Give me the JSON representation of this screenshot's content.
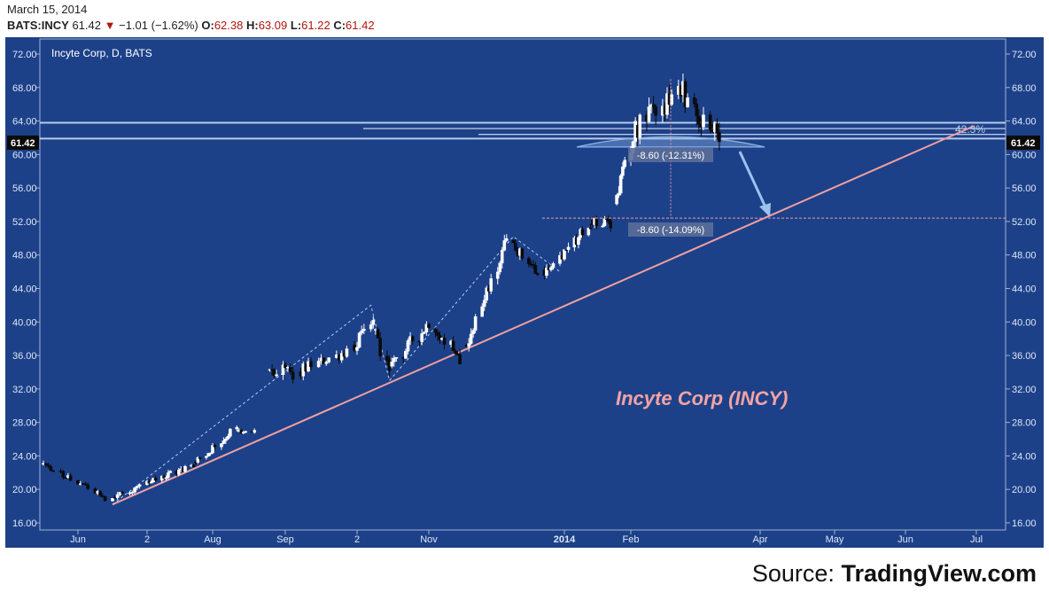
{
  "header": {
    "date": "March 15, 2014",
    "symbol": "BATS:INCY",
    "last": "61.42",
    "change": "−1.01 (−1.62%)",
    "o_label": "O:",
    "o_val": "62.38",
    "h_label": "H:",
    "h_val": "63.09",
    "l_label": "L:",
    "l_val": "61.22",
    "c_label": "C:",
    "c_val": "61.42"
  },
  "source": {
    "prefix": "Source: ",
    "brand": "TradingView.com"
  },
  "colors": {
    "background": "#1d4189",
    "frame": "#9fb2d2",
    "up_candle": "#ffffff",
    "down_candle": "#0a0a0a",
    "trendline": "#f0a0a0",
    "pattern": "#8fb4e6",
    "badge": "#0a0a0a"
  },
  "chart_data": {
    "type": "candlestick",
    "title": "Incyte Corp, D, BATS",
    "annotation": "Incyte Corp (INCY)",
    "x_ticks": [
      "Jun",
      "2",
      "Aug",
      "Sep",
      "2",
      "Nov",
      "2014",
      "Feb",
      "Apr",
      "May",
      "Jun",
      "Jul"
    ],
    "y_ticks": [
      "72.00",
      "68.00",
      "64.00",
      "60.00",
      "56.00",
      "52.00",
      "48.00",
      "44.00",
      "40.00",
      "36.00",
      "32.00",
      "28.00",
      "24.00",
      "20.00",
      "16.00"
    ],
    "ylim": [
      14.4,
      74.0
    ],
    "last_price": "61.42",
    "last_price_value": 61.42,
    "grid": false,
    "measurements": [
      {
        "label": "-8.60 (-12.31%)",
        "value": -8.6,
        "percent": -12.31
      },
      {
        "label": "-8.60 (-14.09%)",
        "value": -8.6,
        "percent": -14.09
      }
    ],
    "fib_label": "42.3%",
    "support_levels": [
      63.8,
      63.1,
      62.4,
      61.9
    ],
    "target_level": 52.4,
    "trendline": {
      "start": [
        "2013-06-17",
        18.2
      ],
      "end": [
        "2014-06-30",
        63.4
      ]
    },
    "segments": [
      {
        "start": "2013-05-20",
        "end": "2013-06-17",
        "from": 23.0,
        "to": 18.8,
        "n": 21,
        "vol": 0.4
      },
      {
        "start": "2013-06-18",
        "end": "2013-07-23",
        "from": 19.2,
        "to": 22.9,
        "n": 26,
        "vol": 0.45
      },
      {
        "start": "2013-07-24",
        "end": "2013-08-12",
        "from": 23.2,
        "to": 27.2,
        "n": 15,
        "vol": 0.5
      },
      {
        "start": "2013-08-13",
        "end": "2013-08-20",
        "from": 27.0,
        "to": 26.8,
        "n": 6,
        "vol": 0.3
      },
      {
        "start": "2013-08-27",
        "end": "2013-09-06",
        "from": 34.5,
        "to": 33.8,
        "n": 8,
        "vol": 0.8
      },
      {
        "start": "2013-09-09",
        "end": "2013-09-27",
        "from": 34.2,
        "to": 36.6,
        "n": 15,
        "vol": 0.7
      },
      {
        "start": "2013-09-30",
        "end": "2013-10-08",
        "from": 37.2,
        "to": 40.2,
        "n": 7,
        "vol": 0.8
      },
      {
        "start": "2013-10-09",
        "end": "2013-10-15",
        "from": 39.5,
        "to": 33.8,
        "n": 5,
        "vol": 0.9
      },
      {
        "start": "2013-10-16",
        "end": "2013-11-01",
        "from": 35.0,
        "to": 40.0,
        "n": 13,
        "vol": 0.8
      },
      {
        "start": "2013-11-04",
        "end": "2013-11-15",
        "from": 39.5,
        "to": 35.8,
        "n": 10,
        "vol": 0.9
      },
      {
        "start": "2013-11-18",
        "end": "2013-12-06",
        "from": 37.0,
        "to": 49.8,
        "n": 15,
        "vol": 0.9
      },
      {
        "start": "2013-12-09",
        "end": "2013-12-20",
        "from": 49.5,
        "to": 45.6,
        "n": 10,
        "vol": 0.7
      },
      {
        "start": "2013-12-23",
        "end": "2014-01-14",
        "from": 46.2,
        "to": 51.5,
        "n": 16,
        "vol": 0.7
      },
      {
        "start": "2014-01-15",
        "end": "2014-01-24",
        "from": 52.0,
        "to": 51.8,
        "n": 8,
        "vol": 0.6
      },
      {
        "start": "2014-01-27",
        "end": "2014-02-05",
        "from": 54.5,
        "to": 63.2,
        "n": 8,
        "vol": 1.2
      },
      {
        "start": "2014-02-06",
        "end": "2014-02-25",
        "from": 63.5,
        "to": 67.0,
        "n": 14,
        "vol": 1.5
      },
      {
        "start": "2014-02-26",
        "end": "2014-03-14",
        "from": 67.5,
        "to": 61.4,
        "n": 13,
        "vol": 1.5
      }
    ]
  }
}
